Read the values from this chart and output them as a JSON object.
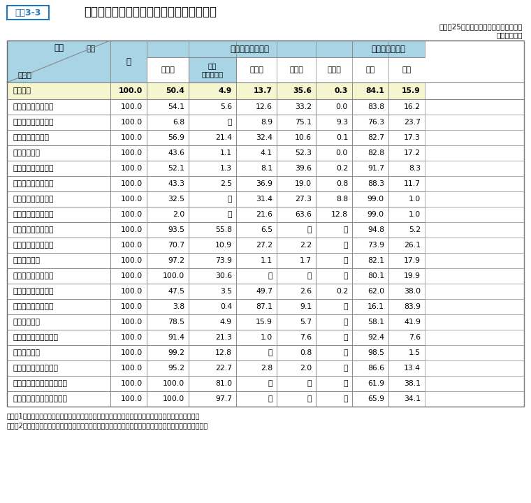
{
  "title": "俸給表別、最終学歴別及び性別人員構成比",
  "title_label": "資料3-3",
  "subtitle1": "（平成25年国家公務員給与等実態調査）",
  "subtitle2": "（単位：％）",
  "header1_label": "区分",
  "header1_sub": "俸給表",
  "header2_label": "計",
  "header3_label": "学歴別人員構成比",
  "header4_label": "性別人員構成比",
  "col_headers": [
    "大学卒",
    "うち\n大学院修了",
    "短大卒",
    "高校卒",
    "中学卒",
    "男性",
    "女性"
  ],
  "rows": [
    [
      "全俸給表",
      "100.0",
      "50.4",
      "4.9",
      "13.7",
      "35.6",
      "0.3",
      "84.1",
      "15.9"
    ],
    [
      "行政職俸給表（一）",
      "100.0",
      "54.1",
      "5.6",
      "12.6",
      "33.2",
      "0.0",
      "83.8",
      "16.2"
    ],
    [
      "行政職俸給表（二）",
      "100.0",
      "6.8",
      "－",
      "8.9",
      "75.1",
      "9.3",
      "76.3",
      "23.7"
    ],
    [
      "専門行政職俸給表",
      "100.0",
      "56.9",
      "21.4",
      "32.4",
      "10.6",
      "0.1",
      "82.7",
      "17.3"
    ],
    [
      "税務職俸給表",
      "100.0",
      "43.6",
      "1.1",
      "4.1",
      "52.3",
      "0.0",
      "82.8",
      "17.2"
    ],
    [
      "公安職俸給表（一）",
      "100.0",
      "52.1",
      "1.3",
      "8.1",
      "39.6",
      "0.2",
      "91.7",
      "8.3"
    ],
    [
      "公安職俸給表（二）",
      "100.0",
      "43.3",
      "2.5",
      "36.9",
      "19.0",
      "0.8",
      "88.3",
      "11.7"
    ],
    [
      "海事職俸給表（一）",
      "100.0",
      "32.5",
      "－",
      "31.4",
      "27.3",
      "8.8",
      "99.0",
      "1.0"
    ],
    [
      "海事職俸給表（二）",
      "100.0",
      "2.0",
      "－",
      "21.6",
      "63.6",
      "12.8",
      "99.0",
      "1.0"
    ],
    [
      "教育職俸給表（一）",
      "100.0",
      "93.5",
      "55.8",
      "6.5",
      "－",
      "－",
      "94.8",
      "5.2"
    ],
    [
      "教育職俸給表（二）",
      "100.0",
      "70.7",
      "10.9",
      "27.2",
      "2.2",
      "－",
      "73.9",
      "26.1"
    ],
    [
      "研究職俸給表",
      "100.0",
      "97.2",
      "73.9",
      "1.1",
      "1.7",
      "－",
      "82.1",
      "17.9"
    ],
    [
      "医療職俸給表（一）",
      "100.0",
      "100.0",
      "30.6",
      "－",
      "－",
      "－",
      "80.1",
      "19.9"
    ],
    [
      "医療職俸給表（二）",
      "100.0",
      "47.5",
      "3.5",
      "49.7",
      "2.6",
      "0.2",
      "62.0",
      "38.0"
    ],
    [
      "医療職俸給表（三）",
      "100.0",
      "3.8",
      "0.4",
      "87.1",
      "9.1",
      "－",
      "16.1",
      "83.9"
    ],
    [
      "福祉職俸給表",
      "100.0",
      "78.5",
      "4.9",
      "15.9",
      "5.7",
      "－",
      "58.1",
      "41.9"
    ],
    [
      "専門スタッフ職俸給表",
      "100.0",
      "91.4",
      "21.3",
      "1.0",
      "7.6",
      "－",
      "92.4",
      "7.6"
    ],
    [
      "指定職俸給表",
      "100.0",
      "99.2",
      "12.8",
      "－",
      "0.8",
      "－",
      "98.5",
      "1.5"
    ],
    [
      "特定任期付職員俸給表",
      "100.0",
      "95.2",
      "22.7",
      "2.8",
      "2.0",
      "－",
      "86.6",
      "13.4"
    ],
    [
      "第一号任期付研究員俸給表",
      "100.0",
      "100.0",
      "81.0",
      "－",
      "－",
      "－",
      "61.9",
      "38.1"
    ],
    [
      "第二号任期付研究員俸給表",
      "100.0",
      "100.0",
      "97.7",
      "－",
      "－",
      "－",
      "65.9",
      "34.1"
    ]
  ],
  "note1": "（注）1　「大学卒」には修士課程及び博士課程修了者を、「短大卒」には高等専門学校卒業者を含む。",
  "note2": "　　　2　構成比は、小数点以下第２位を四捨五入しているため、内訳の合計が計と一致しない場合がある。",
  "bg_header": "#a8d4e6",
  "bg_total": "#f5f5d0",
  "bg_white": "#ffffff",
  "bg_light": "#e8f4f8",
  "border_color": "#888888",
  "text_dark": "#000000"
}
